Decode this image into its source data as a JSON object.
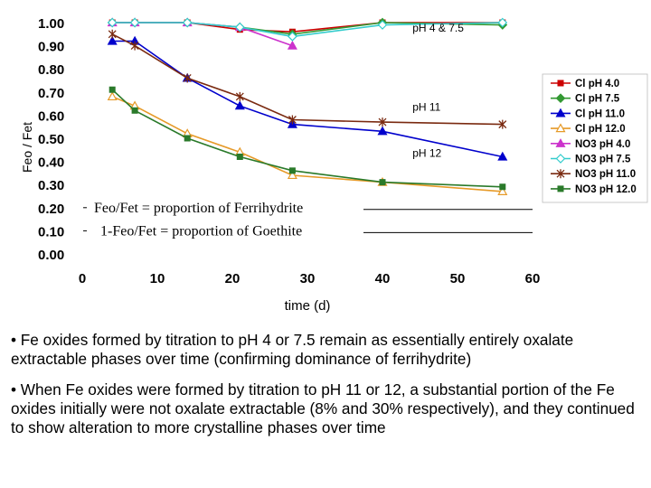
{
  "chart_data": {
    "type": "line",
    "title": "",
    "xlabel": "time (d)",
    "ylabel": "Feo / Fet",
    "xlim": [
      0,
      60
    ],
    "ylim": [
      0,
      1
    ],
    "x_ticks": [
      "0",
      "10",
      "20",
      "30",
      "40",
      "50",
      "60"
    ],
    "y_ticks": [
      "0.00",
      "0.10",
      "0.20",
      "0.30",
      "0.40",
      "0.50",
      "0.60",
      "0.70",
      "0.80",
      "0.90",
      "1.00"
    ],
    "grid": false,
    "legend_position": "right",
    "series": [
      {
        "name": "Cl pH 4.0",
        "color": "#cc0000",
        "marker": "square",
        "points": [
          [
            4,
            1.0
          ],
          [
            7,
            1.0
          ],
          [
            14,
            1.0
          ],
          [
            21,
            0.97
          ],
          [
            28,
            0.96
          ],
          [
            40,
            1.0
          ],
          [
            56,
            1.0
          ]
        ]
      },
      {
        "name": "Cl pH 7.5",
        "color": "#339933",
        "marker": "diamond",
        "points": [
          [
            4,
            1.0
          ],
          [
            7,
            1.0
          ],
          [
            14,
            1.0
          ],
          [
            21,
            0.98
          ],
          [
            28,
            0.95
          ],
          [
            40,
            1.0
          ],
          [
            56,
            0.99
          ]
        ]
      },
      {
        "name": "Cl pH 11.0",
        "color": "#0000cc",
        "marker": "triangle",
        "points": [
          [
            4,
            0.92
          ],
          [
            7,
            0.92
          ],
          [
            14,
            0.76
          ],
          [
            21,
            0.64
          ],
          [
            28,
            0.56
          ],
          [
            40,
            0.53
          ],
          [
            56,
            0.42
          ]
        ]
      },
      {
        "name": "Cl pH 12.0",
        "color": "#e69a28",
        "marker": "triangle-open",
        "points": [
          [
            4,
            0.68
          ],
          [
            7,
            0.64
          ],
          [
            14,
            0.52
          ],
          [
            21,
            0.44
          ],
          [
            28,
            0.34
          ],
          [
            40,
            0.31
          ],
          [
            56,
            0.27
          ]
        ]
      },
      {
        "name": "NO3 pH 4.0",
        "color": "#cc33cc",
        "marker": "triangle",
        "points": [
          [
            4,
            1.0
          ],
          [
            7,
            1.0
          ],
          [
            14,
            1.0
          ],
          [
            21,
            0.98
          ],
          [
            28,
            0.9
          ]
        ]
      },
      {
        "name": "NO3 pH 7.5",
        "color": "#33cccc",
        "marker": "diamond-open",
        "points": [
          [
            4,
            1.0
          ],
          [
            7,
            1.0
          ],
          [
            14,
            1.0
          ],
          [
            21,
            0.98
          ],
          [
            28,
            0.94
          ],
          [
            40,
            0.99
          ],
          [
            56,
            1.0
          ]
        ]
      },
      {
        "name": "NO3 pH 11.0",
        "color": "#7a2a10",
        "marker": "star",
        "points": [
          [
            4,
            0.95
          ],
          [
            7,
            0.9
          ],
          [
            14,
            0.76
          ],
          [
            21,
            0.68
          ],
          [
            28,
            0.58
          ],
          [
            40,
            0.57
          ],
          [
            56,
            0.56
          ]
        ]
      },
      {
        "name": "NO3 pH 12.0",
        "color": "#2a7a2a",
        "marker": "square",
        "points": [
          [
            4,
            0.71
          ],
          [
            7,
            0.62
          ],
          [
            14,
            0.5
          ],
          [
            21,
            0.42
          ],
          [
            28,
            0.36
          ],
          [
            40,
            0.31
          ],
          [
            56,
            0.29
          ]
        ]
      }
    ],
    "annotations": [
      {
        "text": "pH  4 & 7.5",
        "x": 44,
        "y": 0.96
      },
      {
        "text": "pH 11",
        "x": 44,
        "y": 0.62
      },
      {
        "text": "pH  12",
        "x": 44,
        "y": 0.42
      }
    ],
    "notes": [
      {
        "text": "Feo/Fet = proportion of Ferrihydrite",
        "y": 0.2
      },
      {
        "text": "1-Feo/Fet = proportion of Goethite",
        "y": 0.1
      }
    ]
  },
  "bullets": [
    "• Fe oxides formed by titration to pH 4 or 7.5 remain as essentially entirely oxalate extractable phases over time (confirming dominance of ferrihydrite)",
    "• When Fe oxides were formed by titration to pH 11 or 12, a substantial portion of the Fe oxides initially were not oxalate extractable (8% and 30% respectively), and they continued to show alteration to more crystalline phases over time"
  ]
}
